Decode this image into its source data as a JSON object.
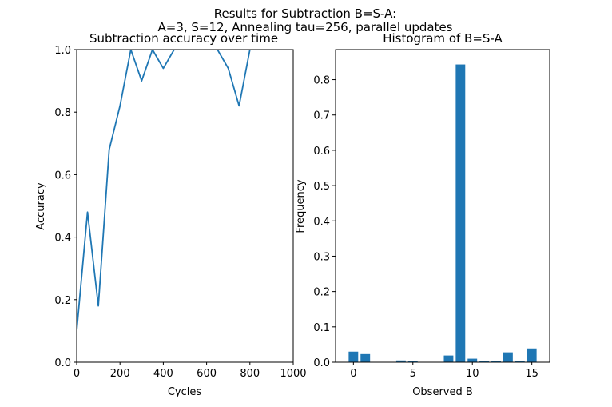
{
  "figure": {
    "suptitle_line1": "Results for Subtraction B=S-A:",
    "suptitle_line2": "A=3, S=12, Annealing tau=256, parallel updates"
  },
  "chart_data": [
    {
      "type": "line",
      "title": "Subtraction accuracy over time",
      "xlabel": "Cycles",
      "ylabel": "Accuracy",
      "xlim": [
        0,
        1000
      ],
      "ylim": [
        0,
        1.0
      ],
      "xticks": [
        "0",
        "200",
        "400",
        "600",
        "800",
        "1000"
      ],
      "yticks": [
        "0.0",
        "0.2",
        "0.4",
        "0.6",
        "0.8",
        "1.0"
      ],
      "color": "#1f77b4",
      "x": [
        0,
        50,
        100,
        150,
        200,
        250,
        300,
        350,
        400,
        450,
        500,
        550,
        600,
        650,
        700,
        750,
        800,
        850
      ],
      "y": [
        0.1,
        0.48,
        0.18,
        0.68,
        0.82,
        1.0,
        0.9,
        1.0,
        0.94,
        1.0,
        1.0,
        1.0,
        1.0,
        1.0,
        0.94,
        0.82,
        1.0,
        1.0
      ],
      "grid": false
    },
    {
      "type": "bar",
      "title": "Histogram of B=S-A",
      "xlabel": "Observed B",
      "ylabel": "Frequency",
      "xlim": [
        -1.5,
        16.5
      ],
      "ylim": [
        0,
        0.885
      ],
      "xticks": [
        "0",
        "5",
        "10",
        "15"
      ],
      "yticks": [
        "0.0",
        "0.1",
        "0.2",
        "0.3",
        "0.4",
        "0.5",
        "0.6",
        "0.7",
        "0.8"
      ],
      "color": "#1f77b4",
      "categories": [
        0,
        1,
        2,
        3,
        4,
        5,
        6,
        7,
        8,
        9,
        10,
        11,
        12,
        13,
        14,
        15
      ],
      "values": [
        0.03,
        0.023,
        0,
        0,
        0.005,
        0.003,
        0,
        0,
        0.019,
        0.843,
        0.01,
        0.003,
        0.003,
        0.028,
        0.003,
        0.039
      ],
      "grid": false
    }
  ]
}
